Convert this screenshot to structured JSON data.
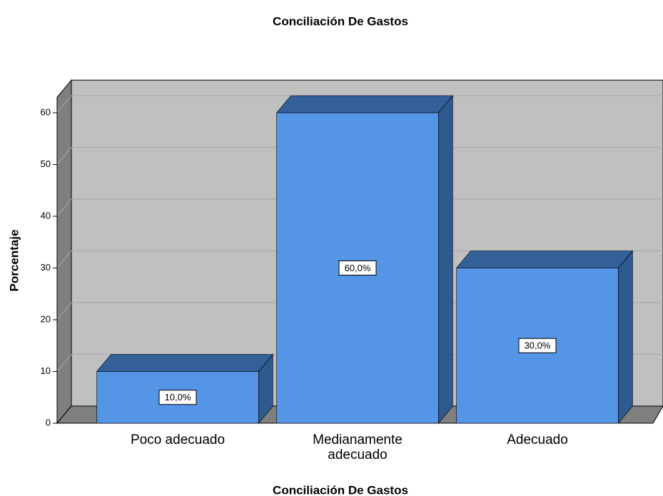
{
  "chart_data": {
    "type": "bar3d",
    "title": "Conciliación De Gastos",
    "x_label": "Conciliación De Gastos",
    "y_label": "Porcentaje",
    "categories": [
      "Poco adecuado",
      "Medianamente adecuado",
      "Adecuado"
    ],
    "values": [
      10,
      60,
      30
    ],
    "value_labels": [
      "10,0%",
      "60,0%",
      "30,0%"
    ],
    "color": "#5595e5",
    "ylim": [
      0,
      63
    ],
    "yticks": [
      0,
      10,
      20,
      30,
      40,
      50,
      60
    ],
    "grid": true
  }
}
